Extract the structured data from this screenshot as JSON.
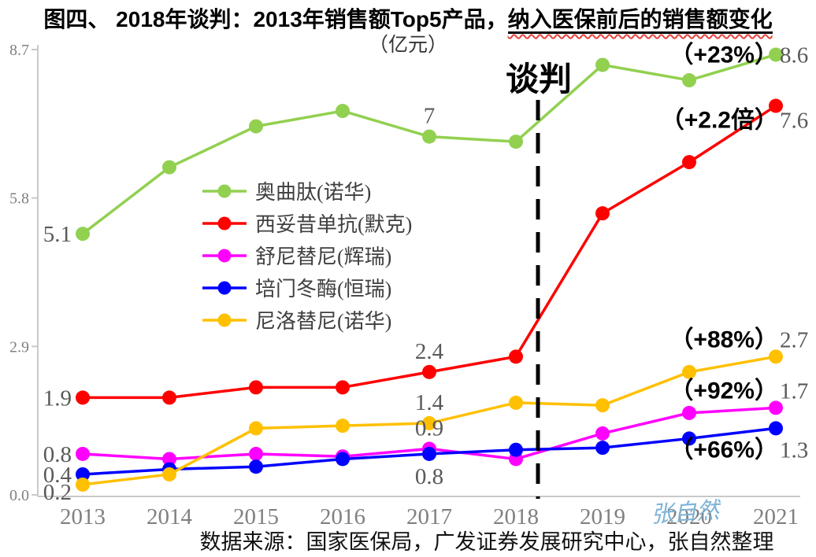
{
  "title": {
    "prefix": "图四、 2018年谈判：2013年销售额Top5产品，",
    "underlined": "纳入医保前后的销售额变化"
  },
  "subtitle": "（亿元）",
  "source": "数据来源：国家医保局，广发证券发展研究中心，张自然整理",
  "watermark": "张自然",
  "colors": {
    "axis": "#C9C9C9",
    "tick_label": "#808080",
    "data_label": "#595959",
    "annotation": "#000000",
    "watermark": "#7EB3D8"
  },
  "chart_data": {
    "type": "line",
    "title": "图四、 2018年谈判：2013年销售额Top5产品，纳入医保前后的销售额变化",
    "unit_label": "（亿元）",
    "xlabel": "",
    "ylabel": "",
    "categories": [
      "2013",
      "2014",
      "2015",
      "2016",
      "2017",
      "2018",
      "2019",
      "2020",
      "2021"
    ],
    "ylim": [
      0,
      8.7
    ],
    "yticks": [
      0,
      2.9,
      5.8,
      8.7
    ],
    "ytick_labels": [
      "0.0",
      "2.9",
      "5.8",
      "8.7"
    ],
    "grid": false,
    "legend_position": "inside-upper-left",
    "series": [
      {
        "key": "octreotide",
        "name": "奥曲肽(诺华)",
        "color": "#92D050",
        "values": [
          5.1,
          6.4,
          7.2,
          7.5,
          7.0,
          6.9,
          8.4,
          8.1,
          8.6
        ]
      },
      {
        "key": "cetuximab",
        "name": "西妥昔单抗(默克)",
        "color": "#FF0000",
        "values": [
          1.9,
          1.9,
          2.1,
          2.1,
          2.4,
          2.7,
          5.5,
          6.5,
          7.6
        ]
      },
      {
        "key": "sunitinib",
        "name": "舒尼替尼(辉瑞)",
        "color": "#FF00FF",
        "values": [
          0.8,
          0.7,
          0.8,
          0.75,
          0.9,
          0.7,
          1.2,
          1.6,
          1.7
        ]
      },
      {
        "key": "pegaspargase",
        "name": "培门冬酶(恒瑞)",
        "color": "#0000FF",
        "values": [
          0.4,
          0.5,
          0.55,
          0.7,
          0.8,
          0.88,
          0.92,
          1.1,
          1.3
        ]
      },
      {
        "key": "nilotinib",
        "name": "尼洛替尼(诺华)",
        "color": "#FFC000",
        "values": [
          0.2,
          0.4,
          1.3,
          1.35,
          1.4,
          1.8,
          1.75,
          2.4,
          2.7
        ]
      }
    ],
    "point_labels": [
      {
        "text": "5.1",
        "series": "octreotide",
        "year": "2013",
        "pos": "left"
      },
      {
        "text": "7",
        "series": "octreotide",
        "year": "2017",
        "pos": "above"
      },
      {
        "text": "1.9",
        "series": "cetuximab",
        "year": "2013",
        "pos": "left"
      },
      {
        "text": "2.4",
        "series": "cetuximab",
        "year": "2017",
        "pos": "above"
      },
      {
        "text": "0.8",
        "series": "sunitinib",
        "year": "2013",
        "pos": "left"
      },
      {
        "text": "0.9",
        "series": "sunitinib",
        "year": "2017",
        "pos": "above"
      },
      {
        "text": "0.4",
        "series": "pegaspargase",
        "year": "2013",
        "pos": "left"
      },
      {
        "text": "0.8",
        "series": "pegaspargase",
        "year": "2017",
        "pos": "below"
      },
      {
        "text": "0.2",
        "series": "nilotinib",
        "year": "2013",
        "pos": "left",
        "dy": 9
      },
      {
        "text": "1.4",
        "series": "nilotinib",
        "year": "2017",
        "pos": "above"
      }
    ],
    "end_annotations": [
      {
        "bold": "（+23%）",
        "value": "8.6",
        "series": "octreotide",
        "dy": 0
      },
      {
        "bold": "（+2.2倍）",
        "value": "7.6",
        "series": "cetuximab",
        "dy": 18
      },
      {
        "bold": "（+88%）",
        "value": "2.7",
        "series": "nilotinib",
        "dy": -22
      },
      {
        "bold": "（+92%）",
        "value": "1.7",
        "series": "sunitinib",
        "dy": -22
      },
      {
        "bold": "（+66%）",
        "value": "1.3",
        "series": "pegaspargase",
        "dy": 27
      }
    ],
    "negotiation": {
      "label": "谈判",
      "after_category": "2018"
    }
  }
}
